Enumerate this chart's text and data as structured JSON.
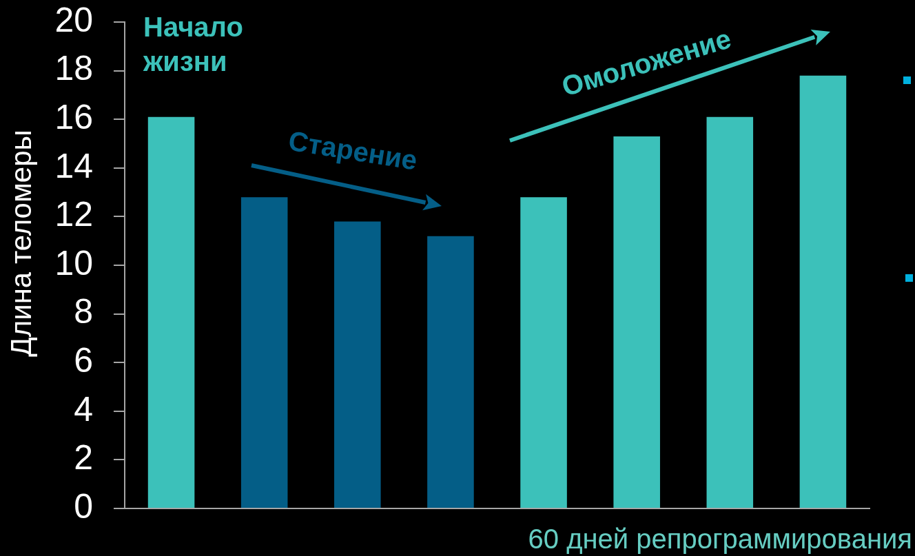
{
  "chart_data": {
    "type": "bar",
    "ylabel": "Длина теломеры",
    "xlabel": "60 дней репрограммирования",
    "annotations": [
      "Начало жизни",
      "Старение",
      "Омоложение"
    ],
    "categories": [
      null,
      null,
      null,
      null,
      null,
      null,
      null,
      null
    ],
    "values": [
      16.1,
      12.8,
      11.8,
      11.2,
      12.8,
      15.3,
      16.1,
      17.8
    ],
    "colors": [
      "#3cc1ba",
      "#045e87",
      "#045e87",
      "#045e87",
      "#3cc1ba",
      "#3cc1ba",
      "#3cc1ba",
      "#3cc1ba"
    ],
    "ylim": [
      0,
      20
    ],
    "yticks": [
      0,
      2,
      4,
      6,
      8,
      10,
      12,
      14,
      16,
      18,
      20
    ]
  }
}
